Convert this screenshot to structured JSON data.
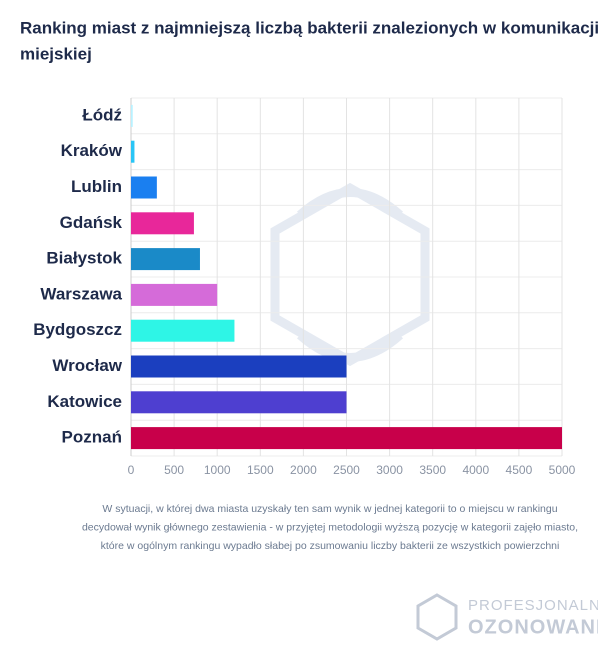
{
  "chart_data": {
    "type": "barh",
    "title": [
      "Ranking miast z najmniejszą liczbą bakterii znalezionych w komunikacji",
      "miejskiej"
    ],
    "categories": [
      "Łódź",
      "Kraków",
      "Lublin",
      "Gdańsk",
      "Białystok",
      "Warszawa",
      "Bydgoszcz",
      "Wrocław",
      "Katowice",
      "Poznań"
    ],
    "values": [
      20,
      40,
      300,
      730,
      800,
      1000,
      1200,
      2500,
      2500,
      5000
    ],
    "colors": [
      "#b8f1ff",
      "#29c5f6",
      "#1a7ff0",
      "#e8279a",
      "#1a8ac8",
      "#d56bd9",
      "#2ef5e6",
      "#1b3fbf",
      "#4e3fd0",
      "#c8004a"
    ],
    "xlim": [
      0,
      5000
    ],
    "xticks": [
      0,
      500,
      1000,
      1500,
      2000,
      2500,
      3000,
      3500,
      4000,
      4500,
      5000
    ],
    "grid": true,
    "footnote": [
      "W sytuacji, w której dwa miasta uzyskały ten sam wynik w jednej kategorii to o miejscu w rankingu",
      "decydował wynik głównego zestawienia - w przyjętej metodologii wyższą pozycję w kategorii zajęło miasto,",
      "które w ogólnym rankingu wypadło słabej po zsumowaniu liczby bakterii ze wszystkich powierzchni"
    ],
    "logo": [
      "PROFESJONALNE",
      "OZONOWANIE"
    ]
  }
}
